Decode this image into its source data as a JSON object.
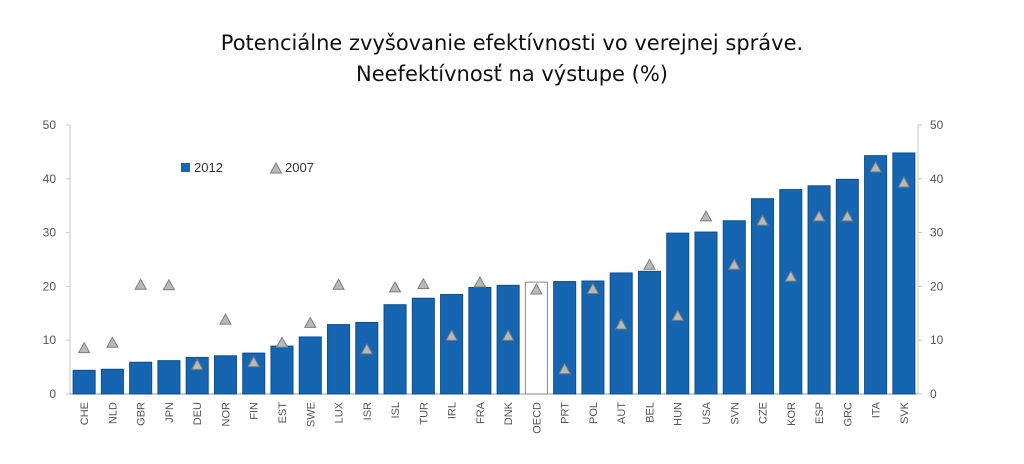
{
  "title": {
    "line1": "Potenciálne zvyšovanie efektívnosti vo verejnej správe.",
    "line2": "Neefektívnosť na výstupe (%)"
  },
  "colors": {
    "bar": "#1565B0",
    "bar_stroke": "#0d4f91",
    "highlight_bar_fill": "#ffffff",
    "triangle_fill": "#b9b9b9",
    "triangle_stroke": "#7d7d7d",
    "grid": "#c8c8c8",
    "axis_text": "#555555"
  },
  "chart_data": {
    "type": "bar",
    "categories": [
      "CHE",
      "NLD",
      "GBR",
      "JPN",
      "DEU",
      "NOR",
      "FIN",
      "EST",
      "SWE",
      "LUX",
      "ISR",
      "ISL",
      "TUR",
      "IRL",
      "FRA",
      "DNK",
      "OECD",
      "PRT",
      "POL",
      "AUT",
      "BEL",
      "HUN",
      "USA",
      "SVN",
      "CZE",
      "KOR",
      "ESP",
      "GRC",
      "ITA",
      "SVK"
    ],
    "series": [
      {
        "name": "2012",
        "marker": "bar",
        "values": [
          4.4,
          4.6,
          5.9,
          6.2,
          6.8,
          7.1,
          7.6,
          8.9,
          10.6,
          12.9,
          13.3,
          16.6,
          17.8,
          18.5,
          19.8,
          20.2,
          20.8,
          20.9,
          21.0,
          22.5,
          22.8,
          29.9,
          30.1,
          32.2,
          36.3,
          38.0,
          38.7,
          39.9,
          44.3,
          44.8
        ]
      },
      {
        "name": "2007",
        "marker": "triangle",
        "values": [
          8.6,
          9.6,
          20.4,
          20.3,
          5.5,
          13.9,
          6.0,
          9.6,
          13.3,
          20.4,
          8.4,
          19.9,
          20.5,
          10.9,
          20.8,
          10.9,
          19.5,
          4.7,
          19.6,
          13.0,
          24.1,
          14.6,
          33.1,
          24.1,
          32.3,
          21.9,
          33.1,
          33.1,
          42.2,
          39.4
        ]
      }
    ],
    "highlight_category": "OECD",
    "ylim": [
      0,
      50
    ],
    "yticks": [
      0,
      10,
      20,
      30,
      40,
      50
    ],
    "secondary_y_axis": true,
    "grid": false,
    "legend_position": "top-left",
    "xlabel": "",
    "ylabel": ""
  }
}
